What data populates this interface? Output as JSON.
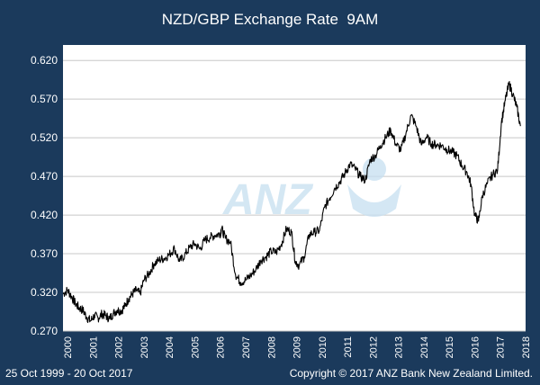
{
  "chart_data": {
    "type": "line",
    "title": "NZD/GBP Exchange Rate  9AM",
    "xlabel": "",
    "ylabel": "",
    "x_ticks": [
      "2000",
      "2001",
      "2002",
      "2003",
      "2004",
      "2005",
      "2006",
      "2007",
      "2008",
      "2009",
      "2010",
      "2011",
      "2012",
      "2013",
      "2014",
      "2015",
      "2016",
      "2017",
      "2018"
    ],
    "y_ticks": [
      "0.270",
      "0.320",
      "0.370",
      "0.420",
      "0.470",
      "0.520",
      "0.570",
      "0.620"
    ],
    "xlim": [
      1999.82,
      2018.0
    ],
    "ylim": [
      0.27,
      0.64
    ],
    "grid": true,
    "series": [
      {
        "x": [
          1999.82,
          2000.0,
          2000.15,
          2000.3,
          2000.45,
          2000.6,
          2000.75,
          2000.9,
          2001.05,
          2001.2,
          2001.35,
          2001.5,
          2001.65,
          2001.8,
          2001.95,
          2002.1,
          2002.25,
          2002.4,
          2002.55,
          2002.7,
          2002.85,
          2003.0,
          2003.2,
          2003.4,
          2003.6,
          2003.8,
          2004.0,
          2004.2,
          2004.4,
          2004.6,
          2004.8,
          2005.0,
          2005.2,
          2005.4,
          2005.6,
          2005.8,
          2006.0,
          2006.05,
          2006.2,
          2006.4,
          2006.6,
          2006.8,
          2007.0,
          2007.2,
          2007.4,
          2007.6,
          2007.8,
          2008.0,
          2008.2,
          2008.4,
          2008.6,
          2008.8,
          2008.95,
          2009.1,
          2009.3,
          2009.5,
          2009.7,
          2009.9,
          2010.1,
          2010.3,
          2010.5,
          2010.7,
          2010.9,
          2011.1,
          2011.3,
          2011.5,
          2011.7,
          2011.9,
          2012.1,
          2012.3,
          2012.5,
          2012.7,
          2012.9,
          2013.1,
          2013.3,
          2013.5,
          2013.7,
          2013.9,
          2014.1,
          2014.3,
          2014.5,
          2014.7,
          2014.9,
          2015.1,
          2015.3,
          2015.5,
          2015.7,
          2015.85,
          2016.0,
          2016.15,
          2016.3,
          2016.5,
          2016.7,
          2016.9,
          2017.05,
          2017.2,
          2017.35,
          2017.5,
          2017.65,
          2017.8
        ],
        "y": [
          0.318,
          0.323,
          0.315,
          0.306,
          0.3,
          0.297,
          0.288,
          0.283,
          0.29,
          0.287,
          0.292,
          0.29,
          0.286,
          0.293,
          0.297,
          0.296,
          0.302,
          0.312,
          0.318,
          0.323,
          0.318,
          0.336,
          0.344,
          0.357,
          0.362,
          0.364,
          0.369,
          0.377,
          0.36,
          0.368,
          0.378,
          0.383,
          0.376,
          0.388,
          0.391,
          0.394,
          0.396,
          0.403,
          0.39,
          0.385,
          0.343,
          0.333,
          0.336,
          0.342,
          0.35,
          0.362,
          0.366,
          0.373,
          0.372,
          0.382,
          0.402,
          0.398,
          0.36,
          0.355,
          0.366,
          0.395,
          0.398,
          0.4,
          0.43,
          0.442,
          0.455,
          0.463,
          0.474,
          0.486,
          0.48,
          0.47,
          0.465,
          0.492,
          0.497,
          0.51,
          0.52,
          0.53,
          0.512,
          0.504,
          0.526,
          0.549,
          0.535,
          0.511,
          0.521,
          0.512,
          0.511,
          0.51,
          0.505,
          0.502,
          0.497,
          0.484,
          0.475,
          0.46,
          0.42,
          0.412,
          0.445,
          0.461,
          0.472,
          0.478,
          0.54,
          0.568,
          0.59,
          0.576,
          0.56,
          0.535
        ]
      }
    ]
  },
  "footer": {
    "date_range": "25 Oct 1999 - 20 Oct 2017",
    "copyright": "Copyright © 2017 ANZ Bank New Zealand Limited."
  },
  "colors": {
    "background": "#1b3a5c",
    "plot_bg": "#ffffff",
    "grid": "#c8c8c8",
    "line": "#000000",
    "watermark": "#c6dff0"
  },
  "watermark": {
    "text": "ANZ"
  }
}
